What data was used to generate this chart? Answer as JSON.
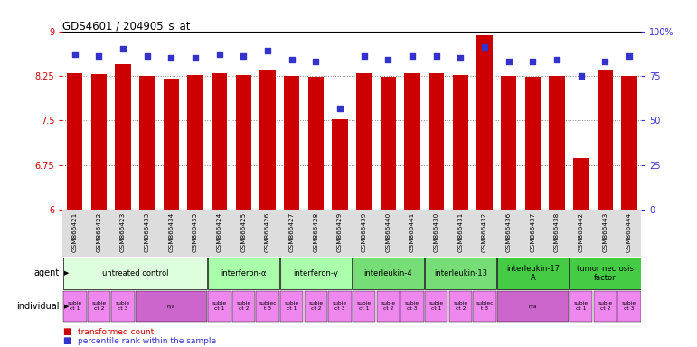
{
  "title": "GDS4601 / 204905_s_at",
  "samples": [
    "GSM866421",
    "GSM866422",
    "GSM866423",
    "GSM866433",
    "GSM866434",
    "GSM866435",
    "GSM866424",
    "GSM866425",
    "GSM866426",
    "GSM866427",
    "GSM866428",
    "GSM866429",
    "GSM866439",
    "GSM866440",
    "GSM866441",
    "GSM866430",
    "GSM866431",
    "GSM866432",
    "GSM866436",
    "GSM866437",
    "GSM866438",
    "GSM866442",
    "GSM866443",
    "GSM866444"
  ],
  "bar_values": [
    8.3,
    8.28,
    8.45,
    8.25,
    8.2,
    8.27,
    8.3,
    8.27,
    8.35,
    8.25,
    8.24,
    7.52,
    8.3,
    8.24,
    8.29,
    8.29,
    8.26,
    8.93,
    8.25,
    8.24,
    8.25,
    6.87,
    8.36,
    8.25
  ],
  "percentile_values": [
    87,
    86,
    90,
    86,
    85,
    85,
    87,
    86,
    89,
    84,
    83,
    57,
    86,
    84,
    86,
    86,
    85,
    91,
    83,
    83,
    84,
    75,
    83,
    86
  ],
  "ylim": [
    6.0,
    9.0
  ],
  "yticks_left": [
    6.0,
    6.75,
    7.5,
    8.25,
    9.0
  ],
  "ytick_labels_left": [
    "6",
    "6.75",
    "7.5",
    "8.25",
    "9"
  ],
  "yticks_right": [
    0,
    25,
    50,
    75,
    100
  ],
  "ytick_labels_right": [
    "0",
    "25",
    "50",
    "75",
    "100%"
  ],
  "bar_color": "#cc0000",
  "dot_color": "#3333cc",
  "gridline_color": "#888888",
  "gridline_y": [
    6.75,
    7.5,
    8.25
  ],
  "agents": [
    {
      "label": "untreated control",
      "start": 0,
      "end": 6,
      "color": "#ddffdd"
    },
    {
      "label": "interferon-α",
      "start": 6,
      "end": 9,
      "color": "#aaffaa"
    },
    {
      "label": "interferon-γ",
      "start": 9,
      "end": 12,
      "color": "#aaffaa"
    },
    {
      "label": "interleukin-4",
      "start": 12,
      "end": 15,
      "color": "#77dd77"
    },
    {
      "label": "interleukin-13",
      "start": 15,
      "end": 18,
      "color": "#77dd77"
    },
    {
      "label": "interleukin-17\nA",
      "start": 18,
      "end": 21,
      "color": "#44cc44"
    },
    {
      "label": "tumor necrosis\nfactor",
      "start": 21,
      "end": 24,
      "color": "#44cc44"
    }
  ],
  "individuals": [
    {
      "label": "subje\nct 1",
      "start": 0,
      "end": 1,
      "color": "#ee88ee"
    },
    {
      "label": "subje\nct 2",
      "start": 1,
      "end": 2,
      "color": "#ee88ee"
    },
    {
      "label": "subje\nct 3",
      "start": 2,
      "end": 3,
      "color": "#ee88ee"
    },
    {
      "label": "n/a",
      "start": 3,
      "end": 6,
      "color": "#cc66cc"
    },
    {
      "label": "subje\nct 1",
      "start": 6,
      "end": 7,
      "color": "#ee88ee"
    },
    {
      "label": "subje\nct 2",
      "start": 7,
      "end": 8,
      "color": "#ee88ee"
    },
    {
      "label": "subjec\nt 3",
      "start": 8,
      "end": 9,
      "color": "#ee88ee"
    },
    {
      "label": "subje\nct 1",
      "start": 9,
      "end": 10,
      "color": "#ee88ee"
    },
    {
      "label": "subje\nct 2",
      "start": 10,
      "end": 11,
      "color": "#ee88ee"
    },
    {
      "label": "subje\nct 3",
      "start": 11,
      "end": 12,
      "color": "#ee88ee"
    },
    {
      "label": "subje\nct 1",
      "start": 12,
      "end": 13,
      "color": "#ee88ee"
    },
    {
      "label": "subje\nct 2",
      "start": 13,
      "end": 14,
      "color": "#ee88ee"
    },
    {
      "label": "subje\nct 3",
      "start": 14,
      "end": 15,
      "color": "#ee88ee"
    },
    {
      "label": "subje\nct 1",
      "start": 15,
      "end": 16,
      "color": "#ee88ee"
    },
    {
      "label": "subje\nct 2",
      "start": 16,
      "end": 17,
      "color": "#ee88ee"
    },
    {
      "label": "subjec\nt 3",
      "start": 17,
      "end": 18,
      "color": "#ee88ee"
    },
    {
      "label": "n/a",
      "start": 18,
      "end": 21,
      "color": "#cc66cc"
    },
    {
      "label": "subje\nct 1",
      "start": 21,
      "end": 22,
      "color": "#ee88ee"
    },
    {
      "label": "subje\nct 2",
      "start": 22,
      "end": 23,
      "color": "#ee88ee"
    },
    {
      "label": "subje\nct 3",
      "start": 23,
      "end": 24,
      "color": "#ee88ee"
    }
  ],
  "legend_bar_color": "#cc0000",
  "legend_dot_color": "#3333cc",
  "right_axis_color": "#3333cc",
  "left_axis_color": "#cc0000",
  "xtick_bg": "#dddddd",
  "label_fontsize": 7,
  "tick_fontsize": 6,
  "sample_fontsize": 5.2
}
